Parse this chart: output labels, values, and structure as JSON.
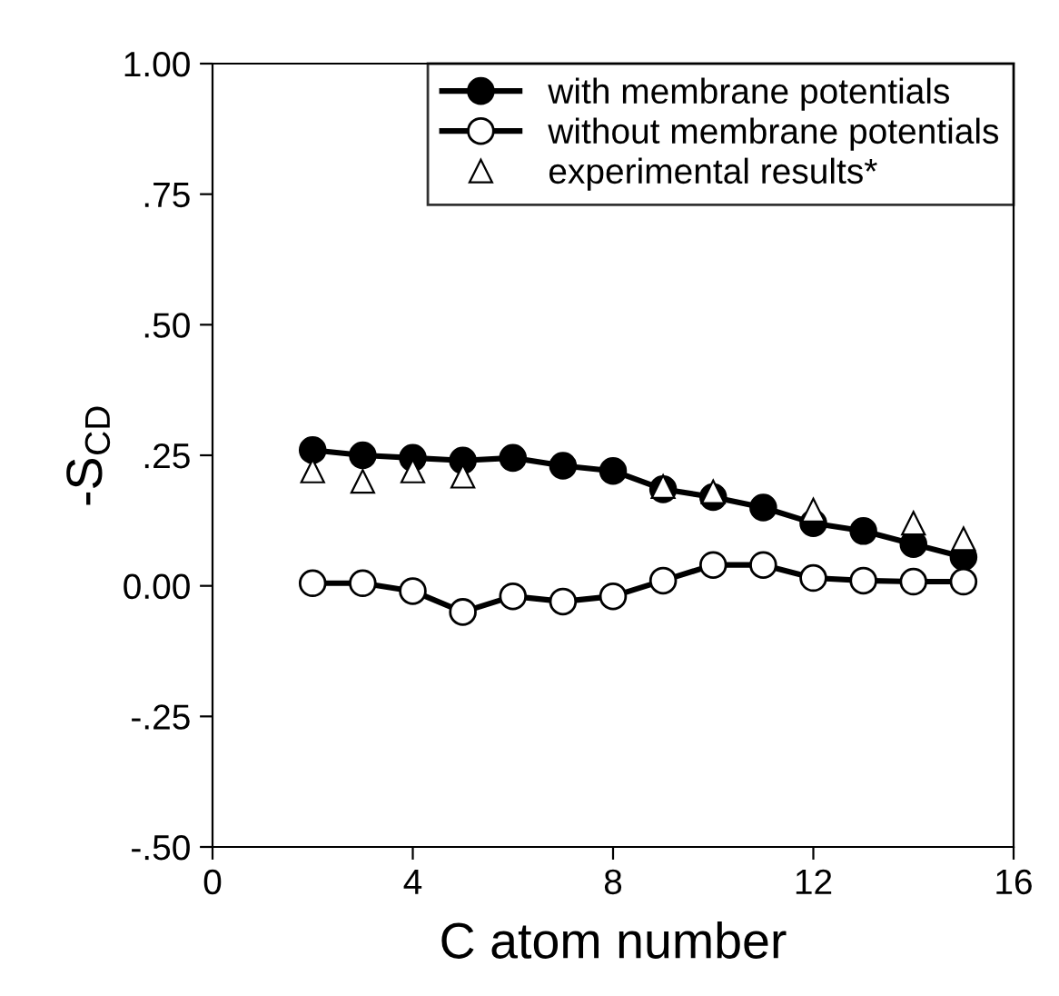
{
  "chart_data": {
    "type": "line",
    "xlabel": "C atom number",
    "ylabel": "-S$_{CD}$",
    "xlim": [
      0,
      16
    ],
    "xticks": [
      0,
      4,
      8,
      12,
      16
    ],
    "ylim": [
      -0.5,
      1.0
    ],
    "yticks": [
      {
        "value": -0.5,
        "label": "-.50"
      },
      {
        "value": -0.25,
        "label": "-.25"
      },
      {
        "value": 0,
        "label": "0.00"
      },
      {
        "value": 0.25,
        "label": ".25"
      },
      {
        "value": 0.5,
        "label": ".50"
      },
      {
        "value": 0.75,
        "label": ".75"
      },
      {
        "value": 1.0,
        "label": "1.00"
      }
    ],
    "grid": false,
    "legend": "top right",
    "series": [
      {
        "name": "with membrane potentials",
        "marker": "circle",
        "color": "#000000",
        "x": [
          2,
          3,
          4,
          5,
          6,
          7,
          8,
          9,
          10,
          11,
          12,
          13,
          14,
          15
        ],
        "values": [
          0.26,
          0.25,
          0.245,
          0.24,
          0.245,
          0.23,
          0.22,
          0.185,
          0.17,
          0.15,
          0.12,
          0.105,
          0.08,
          0.055
        ]
      },
      {
        "name": "without membrane potentials",
        "marker": "circle",
        "color": "#000000",
        "x": [
          2,
          3,
          4,
          5,
          6,
          7,
          8,
          9,
          10,
          11,
          12,
          13,
          14,
          15
        ],
        "values": [
          0.005,
          0.005,
          -0.01,
          -0.05,
          -0.02,
          -0.03,
          -0.02,
          0.01,
          0.04,
          0.04,
          0.015,
          0.01,
          0.008,
          0.008
        ]
      },
      {
        "name": "experimental results*",
        "type": "scatter",
        "marker": "triangle",
        "color": "#000000",
        "x": [
          2,
          3,
          4,
          5,
          9,
          10,
          12,
          14,
          15
        ],
        "values": [
          0.22,
          0.2,
          0.22,
          0.21,
          0.19,
          0.18,
          0.145,
          0.12,
          0.09
        ]
      }
    ]
  }
}
